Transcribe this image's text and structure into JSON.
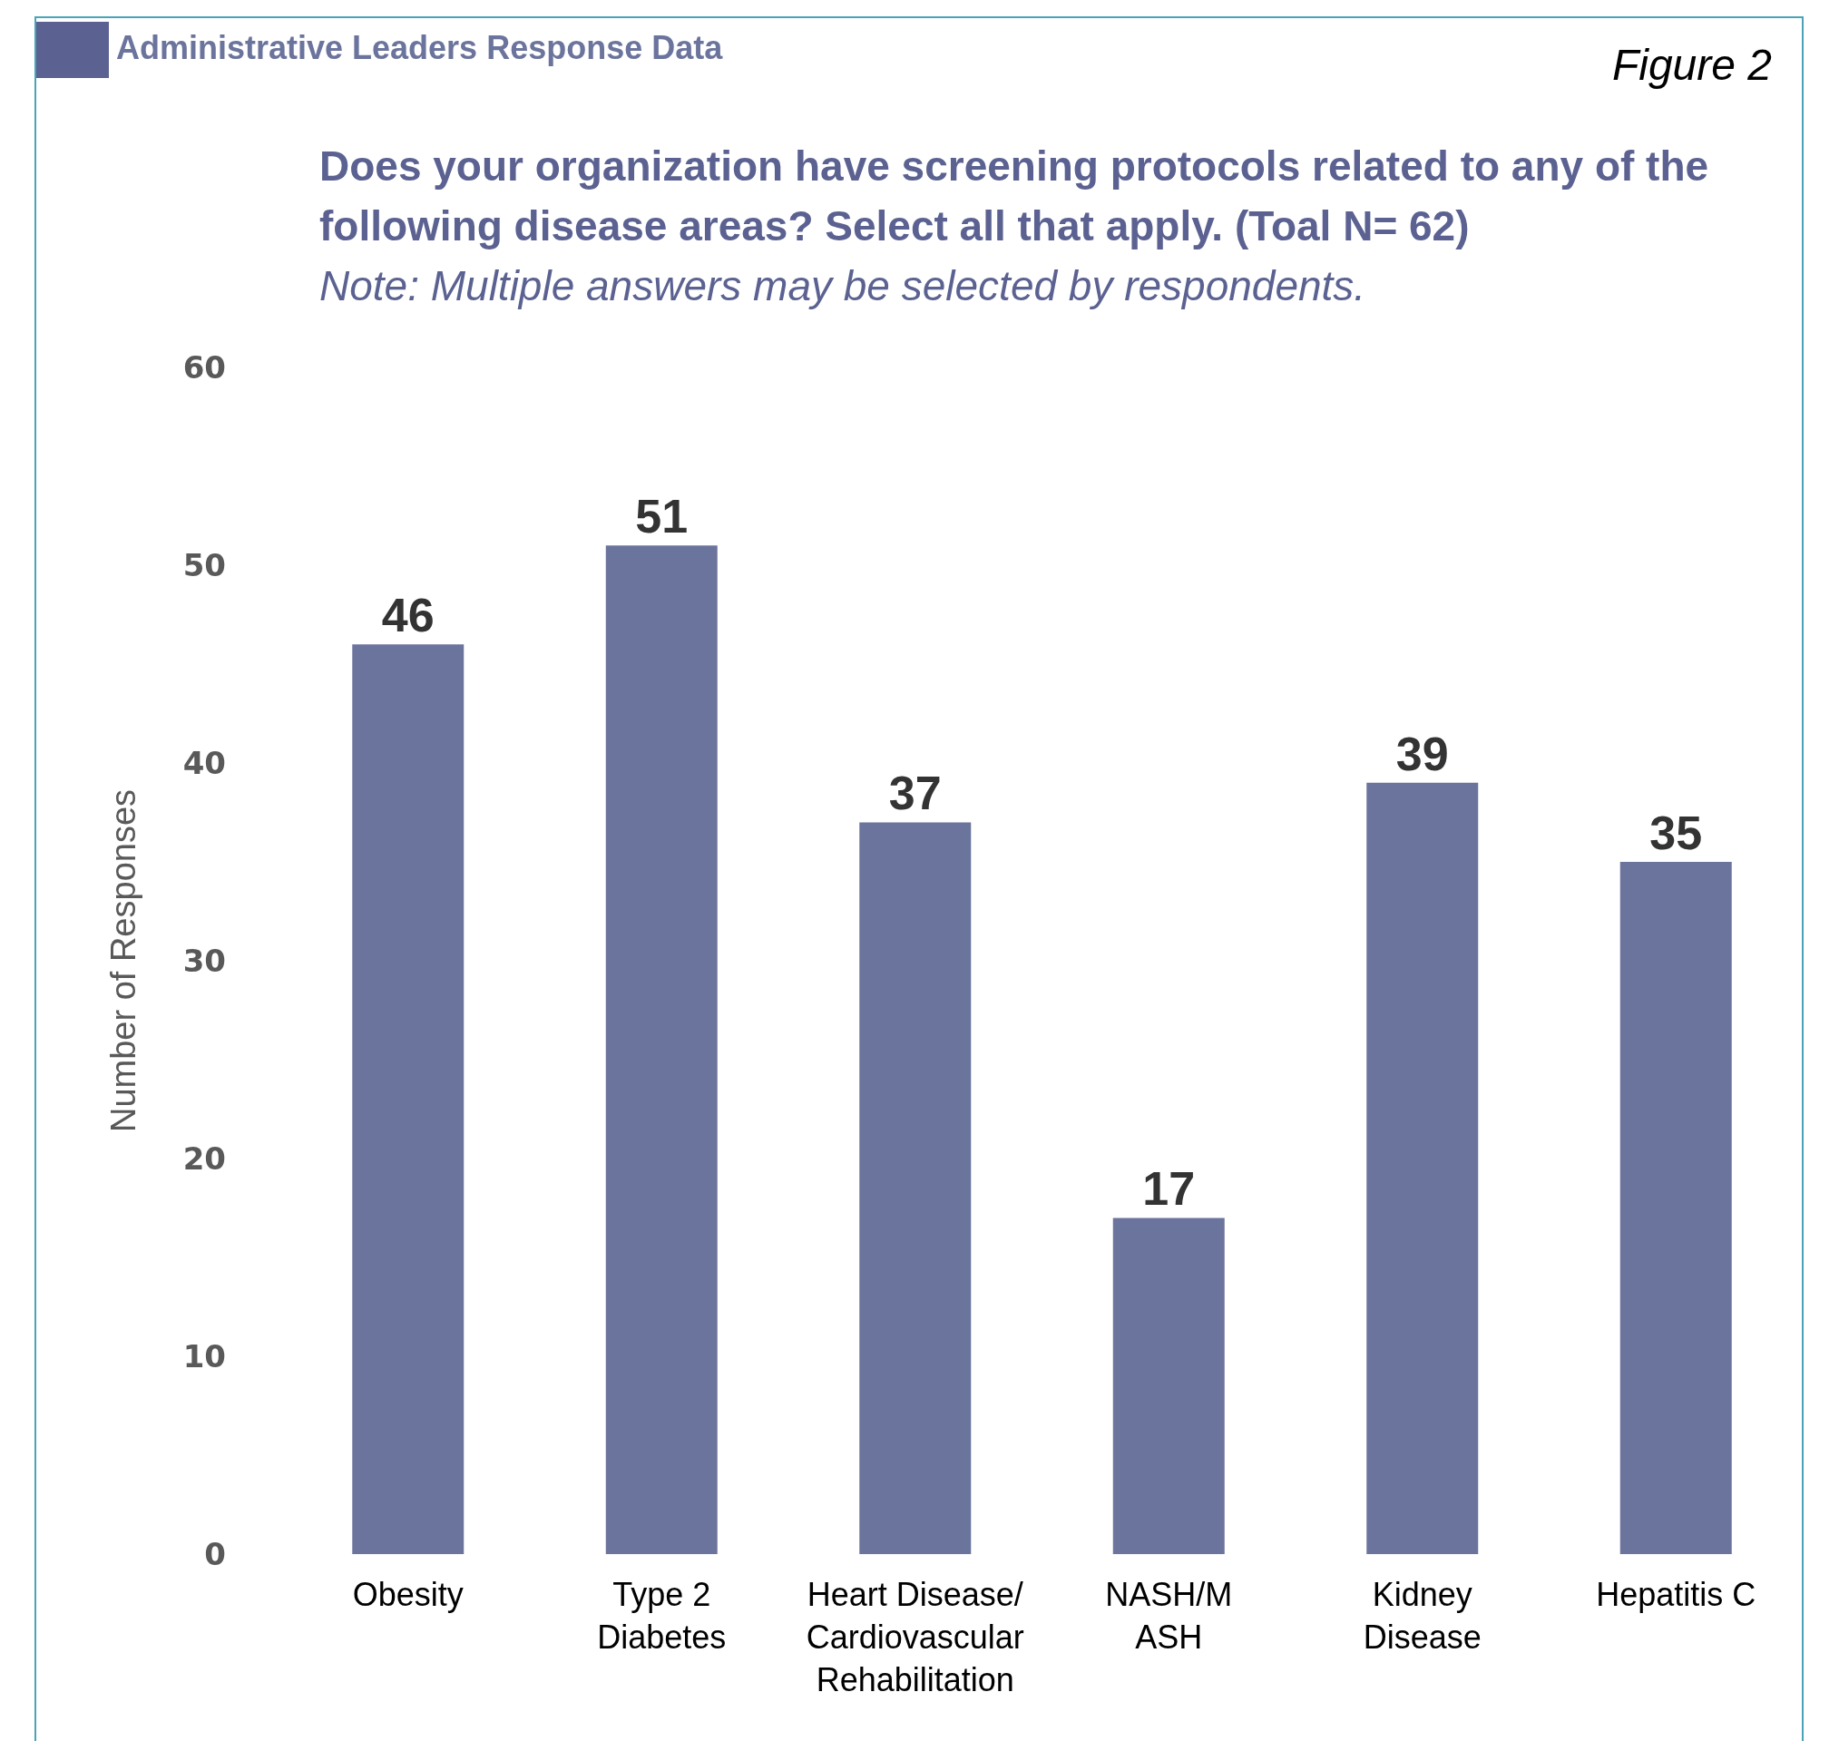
{
  "chart_data": {
    "type": "bar",
    "title": "Does your organization have screening protocols related to any of the following disease areas? Select all that apply. (Toal N= 62)",
    "subtitle": "Note: Multiple answers may be selected by respondents.",
    "annotations": [
      "Administrative Leaders Response Data",
      "Figure 2"
    ],
    "ylabel": "Number of Responses",
    "categories": [
      "Obesity",
      "Type 2\nDiabetes",
      "Heart Disease/\nCardiovascular\nRehabilitation",
      "NASH/M\nASH",
      "Kidney\nDisease",
      "Hepatitis C"
    ],
    "values": [
      46,
      51,
      37,
      17,
      39,
      35
    ],
    "color": "#6b749c",
    "data_labels": true,
    "ylim": [
      0,
      60
    ],
    "yticks": [
      0,
      10,
      20,
      30,
      40,
      50,
      60
    ],
    "grid": false
  }
}
